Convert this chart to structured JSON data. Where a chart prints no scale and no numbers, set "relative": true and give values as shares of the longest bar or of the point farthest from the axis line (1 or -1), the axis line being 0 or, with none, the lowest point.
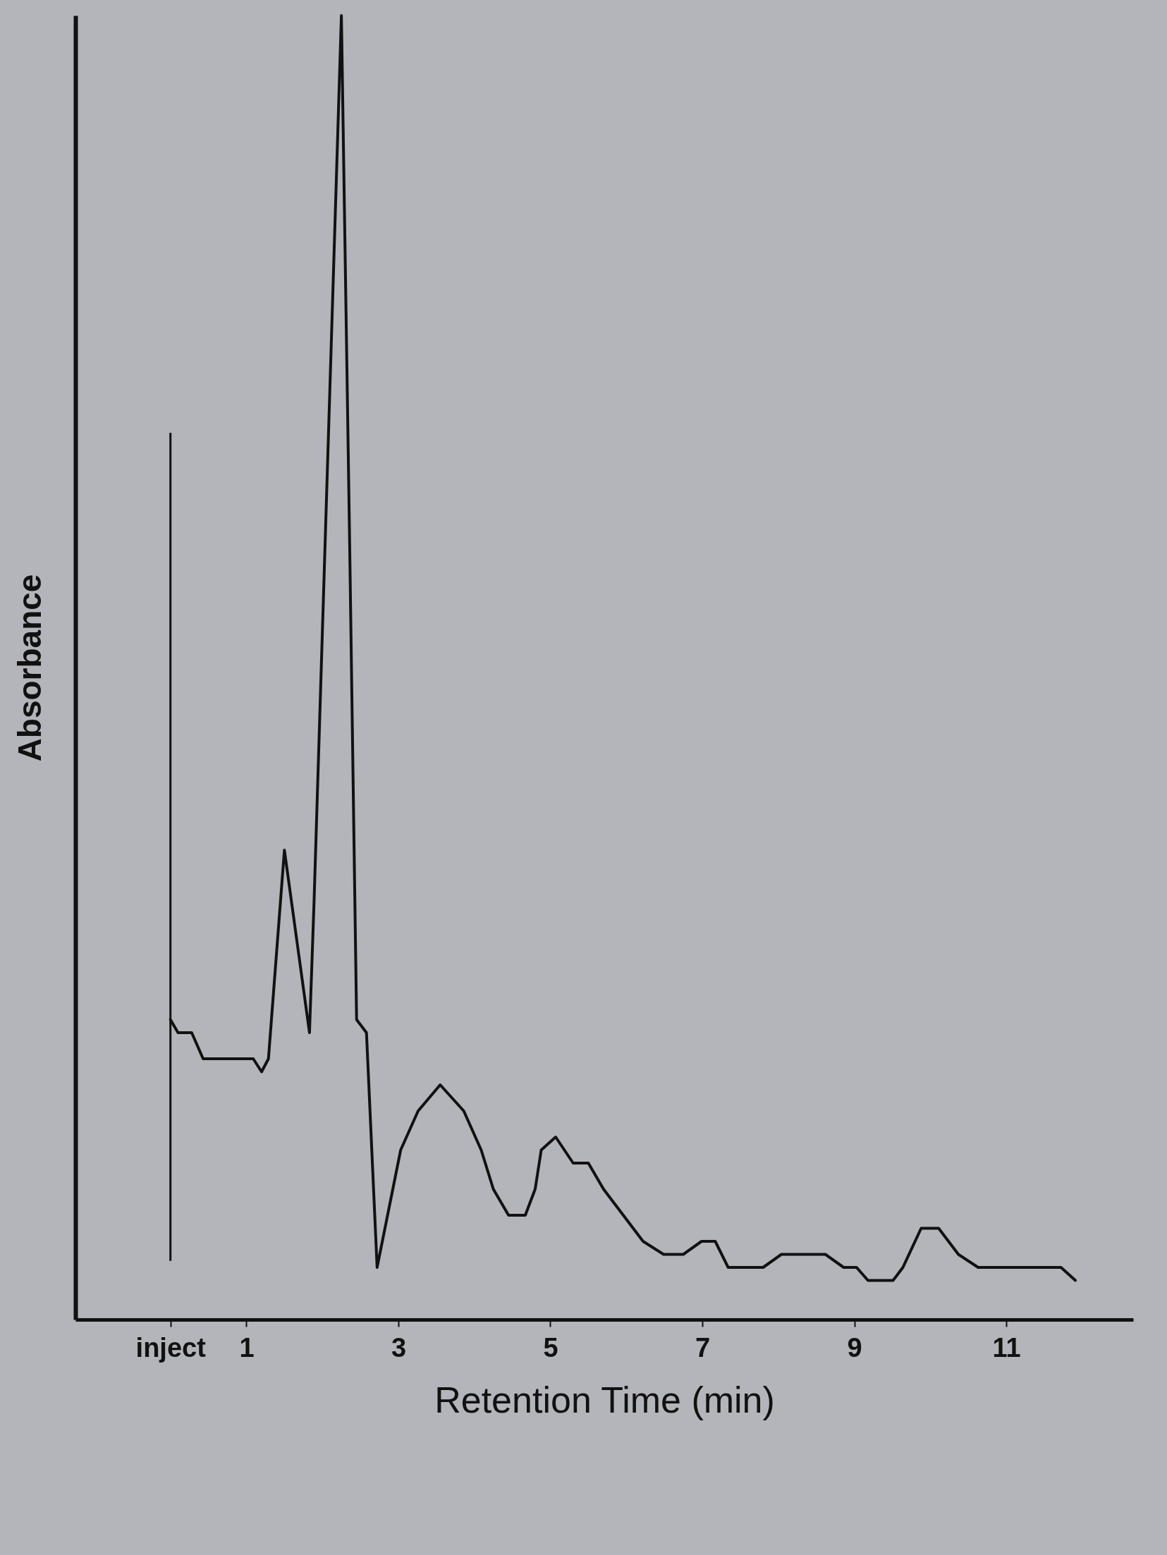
{
  "chart_data": {
    "type": "line",
    "relative": true,
    "xlabel": "Retention Time (min)",
    "ylabel": "Absorbance",
    "xlim": [
      -1.25,
      12.67
    ],
    "xticks": [
      {
        "value": 0,
        "label": "inject"
      },
      1,
      3,
      5,
      7,
      9,
      11
    ],
    "ref_lines": [
      {
        "axis": "x",
        "value": 0
      }
    ],
    "series": [
      {
        "color": "#111111",
        "x": [
          0,
          0.1,
          0.28,
          0.43,
          0.67,
          0.83,
          0.96,
          1.09,
          1.2,
          1.29,
          1.5,
          1.83,
          1.89,
          2.25,
          2.36,
          2.45,
          2.58,
          2.72,
          3.03,
          3.26,
          3.55,
          3.86,
          4.09,
          4.25,
          4.45,
          4.67,
          4.8,
          4.88,
          5.07,
          5.3,
          5.5,
          5.7,
          5.96,
          6.22,
          6.49,
          6.75,
          6.99,
          7.17,
          7.34,
          7.61,
          7.8,
          8.04,
          8.39,
          8.62,
          8.86,
          9.03,
          9.18,
          9.51,
          9.64,
          9.88,
          10.11,
          10.37,
          10.63,
          10.96,
          11.36,
          11.72,
          11.91
        ],
        "values": [
          0.23,
          0.22,
          0.22,
          0.2,
          0.2,
          0.2,
          0.2,
          0.2,
          0.19,
          0.2,
          0.36,
          0.22,
          0.32,
          1,
          0.59,
          0.23,
          0.22,
          0.04,
          0.13,
          0.16,
          0.18,
          0.16,
          0.13,
          0.1,
          0.08,
          0.08,
          0.1,
          0.13,
          0.14,
          0.12,
          0.12,
          0.1,
          0.08,
          0.06,
          0.05,
          0.05,
          0.06,
          0.06,
          0.04,
          0.04,
          0.04,
          0.05,
          0.05,
          0.05,
          0.04,
          0.04,
          0.03,
          0.03,
          0.04,
          0.07,
          0.07,
          0.05,
          0.04,
          0.04,
          0.04,
          0.04,
          0.03
        ]
      }
    ],
    "grid": false,
    "marker": "none",
    "line_style": "solid"
  }
}
